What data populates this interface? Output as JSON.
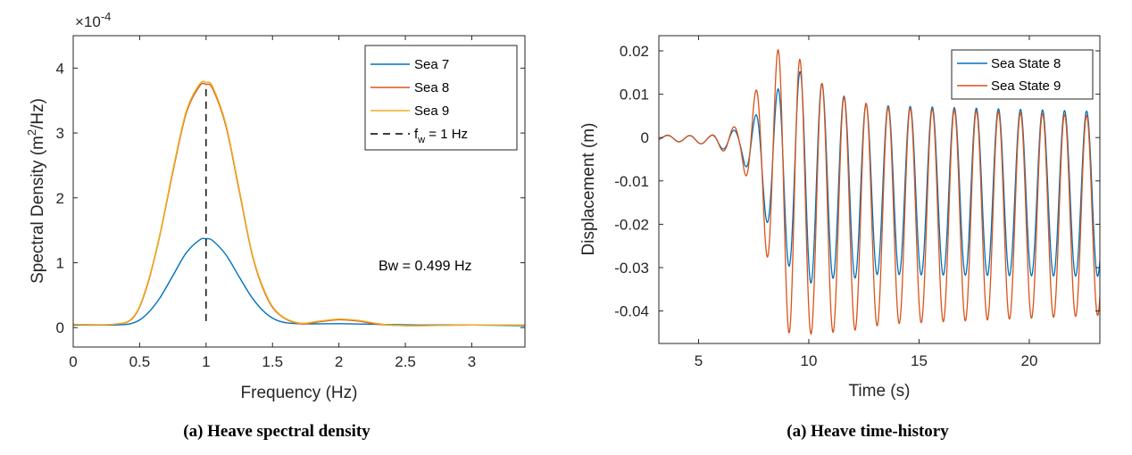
{
  "chart_data": [
    {
      "type": "line",
      "xlabel": "Frequency (Hz)",
      "ylabel_prefix": "Spectral Density (m",
      "ylabel_sup": "2",
      "ylabel_suffix": "/Hz)",
      "y_exponent_prefix": "×10",
      "y_exponent_power": "-4",
      "xlim": [
        0,
        3.4
      ],
      "ylim": [
        -0.3,
        4.5
      ],
      "y_scale_factor": 0.0001,
      "xticks": [
        "0",
        "0.5",
        "1",
        "1.5",
        "2",
        "2.5",
        "3"
      ],
      "yticks": [
        "0",
        "1",
        "2",
        "3",
        "4"
      ],
      "legend_placement": "top-right",
      "series": [
        {
          "name": "Sea 7",
          "color": "#0072BD",
          "style": "solid",
          "x": [
            0,
            0.3,
            0.45,
            0.55,
            0.65,
            0.75,
            0.85,
            0.95,
            1.0,
            1.05,
            1.15,
            1.25,
            1.35,
            1.45,
            1.55,
            1.7,
            2.0,
            2.3,
            2.6,
            3.0,
            3.4
          ],
          "y": [
            0.04,
            0.04,
            0.07,
            0.2,
            0.45,
            0.8,
            1.15,
            1.35,
            1.37,
            1.34,
            1.12,
            0.78,
            0.45,
            0.22,
            0.1,
            0.06,
            0.06,
            0.05,
            0.04,
            0.04,
            0.03
          ]
        },
        {
          "name": "Sea 8",
          "color": "#D95319",
          "style": "solid",
          "x": [
            0,
            0.3,
            0.45,
            0.55,
            0.65,
            0.75,
            0.85,
            0.95,
            1.0,
            1.05,
            1.15,
            1.25,
            1.35,
            1.45,
            1.55,
            1.7,
            1.85,
            2.0,
            2.15,
            2.3,
            2.5,
            3.0,
            3.4
          ],
          "y": [
            0.05,
            0.05,
            0.15,
            0.6,
            1.4,
            2.4,
            3.3,
            3.72,
            3.75,
            3.68,
            3.1,
            2.1,
            1.1,
            0.5,
            0.2,
            0.06,
            0.09,
            0.12,
            0.1,
            0.05,
            0.03,
            0.04,
            0.04
          ]
        },
        {
          "name": "Sea 9",
          "color": "#EDB120",
          "style": "solid",
          "x": [
            0,
            0.3,
            0.45,
            0.55,
            0.65,
            0.75,
            0.85,
            0.95,
            1.0,
            1.05,
            1.15,
            1.25,
            1.35,
            1.45,
            1.55,
            1.7,
            1.85,
            2.0,
            2.15,
            2.3,
            2.5,
            3.0,
            3.4
          ],
          "y": [
            0.05,
            0.05,
            0.16,
            0.62,
            1.42,
            2.43,
            3.33,
            3.75,
            3.78,
            3.71,
            3.13,
            2.13,
            1.12,
            0.52,
            0.21,
            0.07,
            0.1,
            0.13,
            0.11,
            0.06,
            0.03,
            0.04,
            0.04
          ]
        },
        {
          "name_prefix": "f",
          "name_sub": "w",
          "name_suffix": " = 1 Hz",
          "color": "#000000",
          "style": "dashed",
          "x": [
            1,
            1
          ],
          "y": [
            0.1,
            3.75
          ]
        }
      ],
      "annotation": "Bw = 0.499 Hz",
      "caption": "(a) Heave spectral density"
    },
    {
      "type": "line",
      "xlabel": "Time (s)",
      "ylabel": "Displacement (m)",
      "xlim": [
        3.2,
        23.2
      ],
      "ylim": [
        -0.0475,
        0.0235
      ],
      "xticks": [
        "5",
        "10",
        "15",
        "20"
      ],
      "yticks": [
        "0.02",
        "0.01",
        "0",
        "-0.01",
        "-0.02",
        "-0.03",
        "-0.04"
      ],
      "legend_placement": "top-right",
      "series": [
        {
          "name": "Sea State 8",
          "color": "#0072BD",
          "model": "oscillation",
          "period": 1.0,
          "phase_time": 4.6,
          "center": [
            [
              3.2,
              0
            ],
            [
              7.0,
              -0.001
            ],
            [
              7.8,
              -0.005
            ],
            [
              9.0,
              -0.008
            ],
            [
              10.5,
              -0.01
            ],
            [
              12.0,
              -0.012
            ],
            [
              23.2,
              -0.013
            ]
          ],
          "amplitude": [
            [
              3.2,
              0.0005
            ],
            [
              5.5,
              0.001
            ],
            [
              6.9,
              0.003
            ],
            [
              7.8,
              0.011
            ],
            [
              8.8,
              0.02
            ],
            [
              9.8,
              0.025
            ],
            [
              10.8,
              0.022
            ],
            [
              12.8,
              0.0195
            ],
            [
              23.2,
              0.019
            ]
          ]
        },
        {
          "name": "Sea State 9",
          "color": "#D95319",
          "model": "oscillation",
          "period": 1.0,
          "phase_time": 4.6,
          "center": [
            [
              3.2,
              0
            ],
            [
              7.0,
              -0.001
            ],
            [
              7.8,
              -0.004
            ],
            [
              8.8,
              -0.01
            ],
            [
              9.8,
              -0.015
            ],
            [
              11.0,
              -0.017
            ],
            [
              12.0,
              -0.018
            ],
            [
              23.2,
              -0.018
            ]
          ],
          "amplitude": [
            [
              3.2,
              0.0006
            ],
            [
              5.5,
              0.001
            ],
            [
              6.9,
              0.004
            ],
            [
              7.8,
              0.017
            ],
            [
              8.8,
              0.032
            ],
            [
              9.2,
              0.034
            ],
            [
              10.0,
              0.03
            ],
            [
              11.5,
              0.027
            ],
            [
              13.5,
              0.025
            ],
            [
              23.2,
              0.023
            ]
          ]
        }
      ],
      "caption": "(a) Heave time-history"
    }
  ]
}
